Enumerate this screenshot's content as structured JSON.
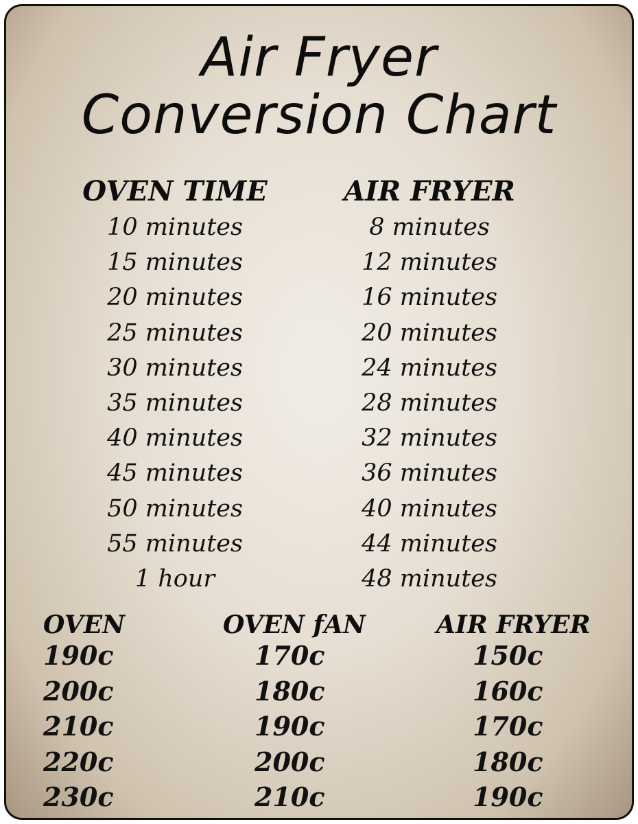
{
  "title": {
    "line1": "Air Fryer",
    "line2": "Conversion Chart"
  },
  "time_table": {
    "headers": [
      "OVEN TIME",
      "AIR FRYER"
    ],
    "oven_time": [
      "10 minutes",
      "15 minutes",
      "20 minutes",
      "25 minutes",
      "30 minutes",
      "35 minutes",
      "40 minutes",
      "45 minutes",
      "50 minutes",
      "55 minutes",
      "1 hour"
    ],
    "air_fryer": [
      "8 minutes",
      "12 minutes",
      "16 minutes",
      "20 minutes",
      "24 minutes",
      "28 minutes",
      "32 minutes",
      "36 minutes",
      "40 minutes",
      "44 minutes",
      "48 minutes"
    ]
  },
  "temp_table": {
    "headers": [
      "OVEN",
      "OVEN fAN",
      "AIR FRYER"
    ],
    "oven": [
      "190c",
      "200c",
      "210c",
      "220c",
      "230c"
    ],
    "oven_fan": [
      "170c",
      "180c",
      "190c",
      "200c",
      "210c"
    ],
    "air_fryer": [
      "150c",
      "160c",
      "170c",
      "180c",
      "190c"
    ]
  },
  "colors": {
    "text": "#0d0d0d",
    "background": "#e6ded2",
    "border": "#111111"
  }
}
